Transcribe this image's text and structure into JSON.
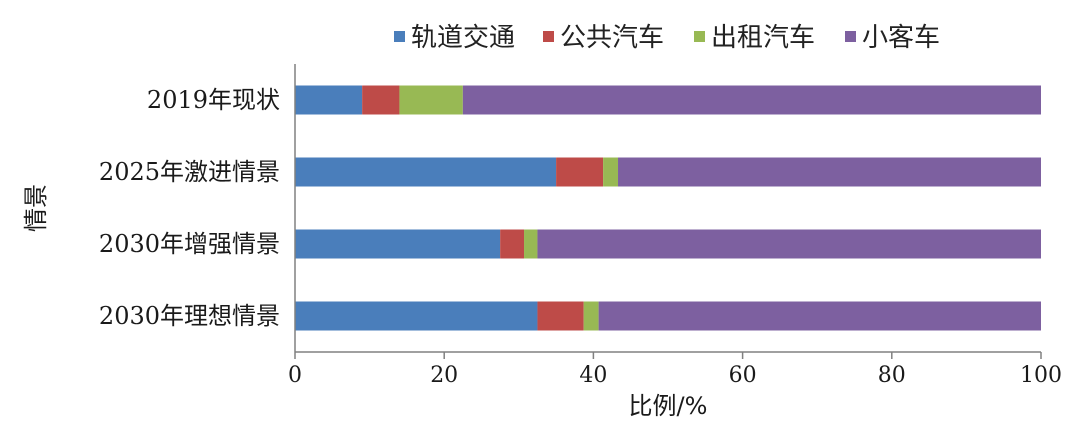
{
  "chart_data": {
    "type": "bar",
    "orientation": "horizontal",
    "stacked": true,
    "categories": [
      "2019年现状",
      "2025年激进情景",
      "2030年增强情景",
      "2030年理想情景"
    ],
    "series": [
      {
        "name": "轨道交通",
        "color": "#4a7ebb",
        "values": [
          9.0,
          35.0,
          27.5,
          32.5
        ]
      },
      {
        "name": "公共汽车",
        "color": "#be4b48",
        "values": [
          5.0,
          6.3,
          3.2,
          6.2
        ]
      },
      {
        "name": "出租汽车",
        "color": "#98b954",
        "values": [
          8.5,
          2.0,
          1.8,
          2.0
        ]
      },
      {
        "name": "小客车",
        "color": "#7d60a0",
        "values": [
          77.5,
          56.7,
          67.5,
          59.3
        ]
      }
    ],
    "xlabel": "比例/%",
    "ylabel": "情景",
    "xlim": [
      0,
      100
    ],
    "xticks": [
      "0",
      "20",
      "40",
      "60",
      "80",
      "100"
    ],
    "grid": false,
    "legend_position": "top"
  }
}
